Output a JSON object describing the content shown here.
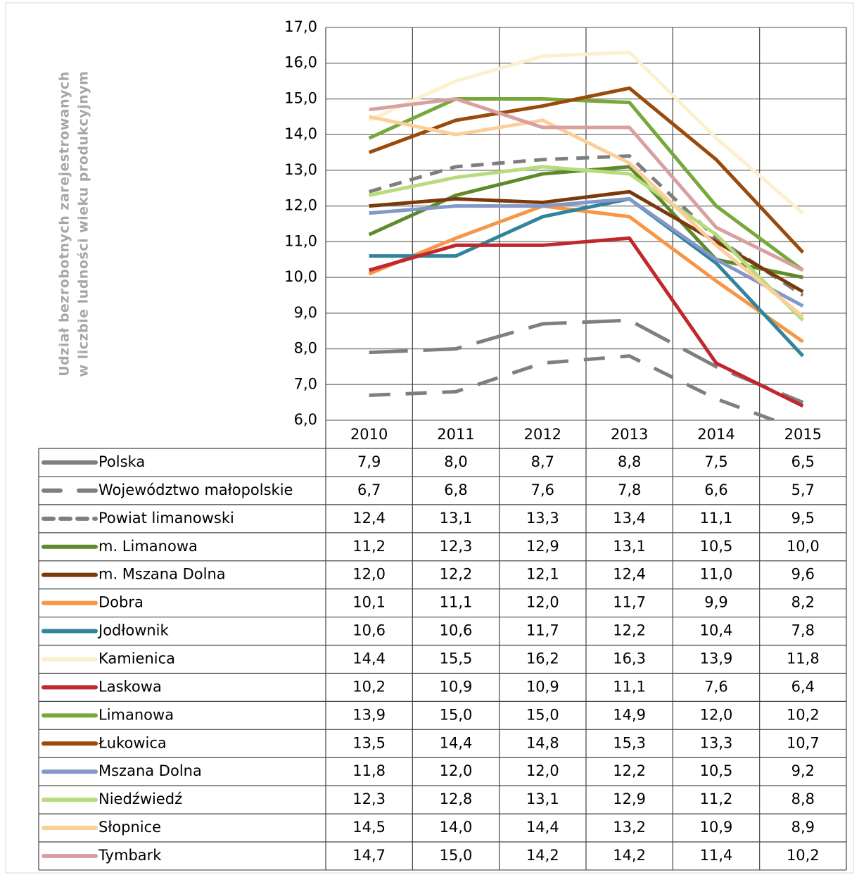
{
  "chart_data": {
    "type": "line",
    "ylabel": [
      "Udział bezrobotnych zarejestrowanych",
      "w liczbie ludności wieku produkcyjnym"
    ],
    "categories": [
      "2010",
      "2011",
      "2012",
      "2013",
      "2014",
      "2015"
    ],
    "ylim": [
      6,
      17
    ],
    "yticks": [
      {
        "value": 6,
        "label": "6,0"
      },
      {
        "value": 7,
        "label": "7,0"
      },
      {
        "value": 8,
        "label": "8,0"
      },
      {
        "value": 9,
        "label": "9,0"
      },
      {
        "value": 10,
        "label": "10,0"
      },
      {
        "value": 11,
        "label": "11,0"
      },
      {
        "value": 12,
        "label": "12,0"
      },
      {
        "value": 13,
        "label": "13,0"
      },
      {
        "value": 14,
        "label": "14,0"
      },
      {
        "value": 15,
        "label": "15,0"
      },
      {
        "value": 16,
        "label": "16,0"
      },
      {
        "value": 17,
        "label": "17,0"
      }
    ],
    "grid": true,
    "series": [
      {
        "name": "Polska",
        "color": "#7f7f7f",
        "dash": "long",
        "values": [
          7.9,
          8.0,
          8.7,
          8.8,
          7.5,
          6.5
        ],
        "value_labels": [
          "7,9",
          "8,0",
          "8,7",
          "8,8",
          "7,5",
          "6,5"
        ]
      },
      {
        "name": "Województwo małopolskie",
        "color": "#7f7f7f",
        "dash": "medium",
        "values": [
          6.7,
          6.8,
          7.6,
          7.8,
          6.6,
          5.7
        ],
        "value_labels": [
          "6,7",
          "6,8",
          "7,6",
          "7,8",
          "6,6",
          "5,7"
        ]
      },
      {
        "name": "Powiat limanowski",
        "color": "#7f7f7f",
        "dash": "short",
        "values": [
          12.4,
          13.1,
          13.3,
          13.4,
          11.1,
          9.5
        ],
        "value_labels": [
          "12,4",
          "13,1",
          "13,3",
          "13,4",
          "11,1",
          "9,5"
        ]
      },
      {
        "name": "m. Limanowa",
        "color": "#5f8a2a",
        "dash": "solid",
        "values": [
          11.2,
          12.3,
          12.9,
          13.1,
          10.5,
          10.0
        ],
        "value_labels": [
          "11,2",
          "12,3",
          "12,9",
          "13,1",
          "10,5",
          "10,0"
        ]
      },
      {
        "name": "m. Mszana Dolna",
        "color": "#7a3a0c",
        "dash": "solid",
        "values": [
          12.0,
          12.2,
          12.1,
          12.4,
          11.0,
          9.6
        ],
        "value_labels": [
          "12,0",
          "12,2",
          "12,1",
          "12,4",
          "11,0",
          "9,6"
        ]
      },
      {
        "name": "Dobra",
        "color": "#f79646",
        "dash": "solid",
        "values": [
          10.1,
          11.1,
          12.0,
          11.7,
          9.9,
          8.2
        ],
        "value_labels": [
          "10,1",
          "11,1",
          "12,0",
          "11,7",
          "9,9",
          "8,2"
        ]
      },
      {
        "name": "Jodłownik",
        "color": "#31849b",
        "dash": "solid",
        "values": [
          10.6,
          10.6,
          11.7,
          12.2,
          10.4,
          7.8
        ],
        "value_labels": [
          "10,6",
          "10,6",
          "11,7",
          "12,2",
          "10,4",
          "7,8"
        ]
      },
      {
        "name": "Kamienica",
        "color": "#fdf0cf",
        "dash": "solid",
        "values": [
          14.4,
          15.5,
          16.2,
          16.3,
          13.9,
          11.8
        ],
        "value_labels": [
          "14,4",
          "15,5",
          "16,2",
          "16,3",
          "13,9",
          "11,8"
        ]
      },
      {
        "name": "Laskowa",
        "color": "#c0282d",
        "dash": "solid",
        "values": [
          10.2,
          10.9,
          10.9,
          11.1,
          7.6,
          6.4
        ],
        "value_labels": [
          "10,2",
          "10,9",
          "10,9",
          "11,1",
          "7,6",
          "6,4"
        ]
      },
      {
        "name": "Limanowa",
        "color": "#77a83a",
        "dash": "solid",
        "values": [
          13.9,
          15.0,
          15.0,
          14.9,
          12.0,
          10.2
        ],
        "value_labels": [
          "13,9",
          "15,0",
          "15,0",
          "14,9",
          "12,0",
          "10,2"
        ]
      },
      {
        "name": "Łukowica",
        "color": "#9a4a0b",
        "dash": "solid",
        "values": [
          13.5,
          14.4,
          14.8,
          15.3,
          13.3,
          10.7
        ],
        "value_labels": [
          "13,5",
          "14,4",
          "14,8",
          "15,3",
          "13,3",
          "10,7"
        ]
      },
      {
        "name": "Mszana Dolna",
        "color": "#8497c9",
        "dash": "solid",
        "values": [
          11.8,
          12.0,
          12.0,
          12.2,
          10.5,
          9.2
        ],
        "value_labels": [
          "11,8",
          "12,0",
          "12,0",
          "12,2",
          "10,5",
          "9,2"
        ]
      },
      {
        "name": "Niedźwiedź",
        "color": "#b6dc7c",
        "dash": "solid",
        "values": [
          12.3,
          12.8,
          13.1,
          12.9,
          11.2,
          8.8
        ],
        "value_labels": [
          "12,3",
          "12,8",
          "13,1",
          "12,9",
          "11,2",
          "8,8"
        ]
      },
      {
        "name": "Słopnice",
        "color": "#fbcf9a",
        "dash": "solid",
        "values": [
          14.5,
          14.0,
          14.4,
          13.2,
          10.9,
          8.9
        ],
        "value_labels": [
          "14,5",
          "14,0",
          "14,4",
          "13,2",
          "10,9",
          "8,9"
        ]
      },
      {
        "name": "Tymbark",
        "color": "#d8a0a0",
        "dash": "solid",
        "values": [
          14.7,
          15.0,
          14.2,
          14.2,
          11.4,
          10.2
        ],
        "value_labels": [
          "14,7",
          "15,0",
          "14,2",
          "14,2",
          "11,4",
          "10,2"
        ]
      }
    ]
  }
}
